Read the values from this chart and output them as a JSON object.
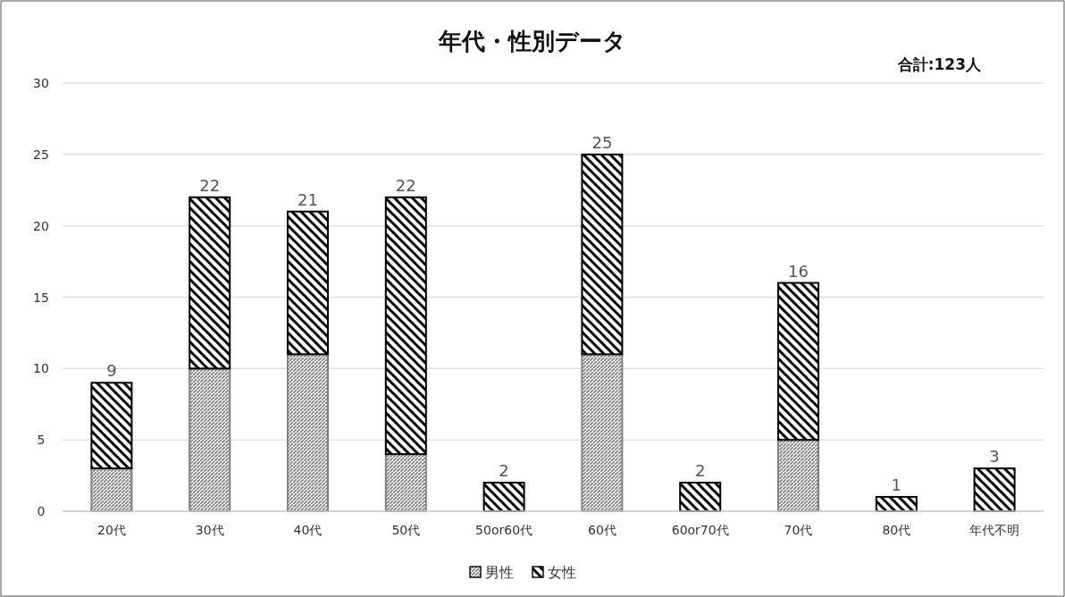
{
  "chart_data": {
    "type": "bar",
    "title": "年代・性別データ",
    "annotations": [
      "合計:123人"
    ],
    "categories": [
      "20代",
      "30代",
      "40代",
      "50代",
      "50or60代",
      "60代",
      "60or70代",
      "70代",
      "80代",
      "年代不明"
    ],
    "stacked": true,
    "series": [
      {
        "name": "男性",
        "color": "#808080",
        "values": [
          3,
          10,
          11,
          4,
          0,
          11,
          0,
          5,
          0,
          0
        ]
      },
      {
        "name": "女性",
        "color": "#000000",
        "values": [
          6,
          12,
          10,
          18,
          2,
          14,
          2,
          11,
          1,
          3
        ]
      }
    ],
    "totals": [
      "9",
      "22",
      "21",
      "22",
      "2",
      "25",
      "2",
      "16",
      "1",
      "3"
    ],
    "ylim": [
      0,
      30
    ],
    "yticks": [
      0,
      5,
      10,
      15,
      20,
      25,
      30
    ],
    "grid": "y",
    "legend": "bottom"
  }
}
